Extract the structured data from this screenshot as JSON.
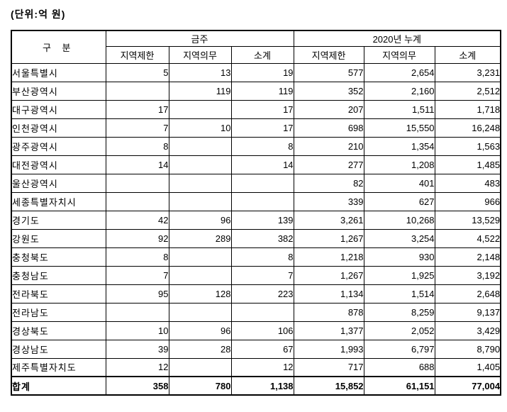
{
  "unit_label": "(단위:억 원)",
  "table": {
    "corner_label": "구 분",
    "groups": [
      {
        "label": "금주",
        "columns": [
          "지역제한",
          "지역의무",
          "소계"
        ]
      },
      {
        "label": "2020년 누계",
        "columns": [
          "지역제한",
          "지역의무",
          "소계"
        ]
      }
    ],
    "rows": [
      {
        "label": "서울특별시",
        "values": [
          "5",
          "13",
          "19",
          "577",
          "2,654",
          "3,231"
        ]
      },
      {
        "label": "부산광역시",
        "values": [
          "",
          "119",
          "119",
          "352",
          "2,160",
          "2,512"
        ]
      },
      {
        "label": "대구광역시",
        "values": [
          "17",
          "",
          "17",
          "207",
          "1,511",
          "1,718"
        ]
      },
      {
        "label": "인천광역시",
        "values": [
          "7",
          "10",
          "17",
          "698",
          "15,550",
          "16,248"
        ]
      },
      {
        "label": "광주광역시",
        "values": [
          "8",
          "",
          "8",
          "210",
          "1,354",
          "1,563"
        ]
      },
      {
        "label": "대전광역시",
        "values": [
          "14",
          "",
          "14",
          "277",
          "1,208",
          "1,485"
        ]
      },
      {
        "label": "울산광역시",
        "values": [
          "",
          "",
          "",
          "82",
          "401",
          "483"
        ]
      },
      {
        "label": "세종특별자치시",
        "values": [
          "",
          "",
          "",
          "339",
          "627",
          "966"
        ]
      },
      {
        "label": "경기도",
        "values": [
          "42",
          "96",
          "139",
          "3,261",
          "10,268",
          "13,529"
        ]
      },
      {
        "label": "강원도",
        "values": [
          "92",
          "289",
          "382",
          "1,267",
          "3,254",
          "4,522"
        ]
      },
      {
        "label": "충청북도",
        "values": [
          "8",
          "",
          "8",
          "1,218",
          "930",
          "2,148"
        ]
      },
      {
        "label": "충청남도",
        "values": [
          "7",
          "",
          "7",
          "1,267",
          "1,925",
          "3,192"
        ]
      },
      {
        "label": "전라북도",
        "values": [
          "95",
          "128",
          "223",
          "1,134",
          "1,514",
          "2,648"
        ]
      },
      {
        "label": "전라남도",
        "values": [
          "",
          "",
          "",
          "878",
          "8,259",
          "9,137"
        ]
      },
      {
        "label": "경상북도",
        "values": [
          "10",
          "96",
          "106",
          "1,377",
          "2,052",
          "3,429"
        ]
      },
      {
        "label": "경상남도",
        "values": [
          "39",
          "28",
          "67",
          "1,993",
          "6,797",
          "8,790"
        ]
      },
      {
        "label": "제주특별자치도",
        "values": [
          "12",
          "",
          "12",
          "717",
          "688",
          "1,405"
        ]
      }
    ],
    "total_row": {
      "label": "합계",
      "values": [
        "358",
        "780",
        "1,138",
        "15,852",
        "61,151",
        "77,004"
      ]
    }
  }
}
